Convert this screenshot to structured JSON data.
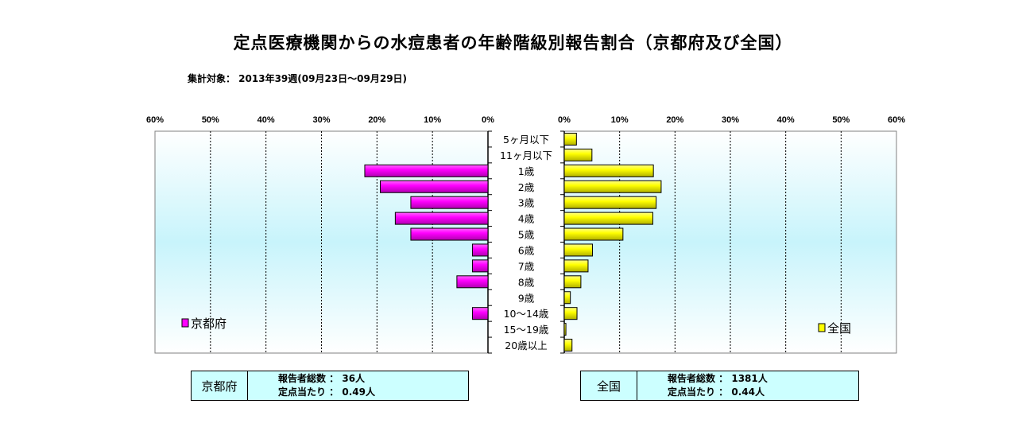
{
  "title": "定点医療機関からの水痘患者の年齢階級別報告割合（京都府及び全国）",
  "subtitle": "集計対象： 2013年39週(09月23日～09月29日)",
  "chart_data": {
    "type": "bar",
    "orientation": "horizontal-butterfly",
    "categories": [
      "5ヶ月以下",
      "11ヶ月以下",
      "1歳",
      "2歳",
      "3歳",
      "4歳",
      "5歳",
      "6歳",
      "7歳",
      "8歳",
      "9歳",
      "10～14歳",
      "15～19歳",
      "20歳以上"
    ],
    "xlim": [
      0,
      60
    ],
    "ticks": [
      "60%",
      "50%",
      "40%",
      "30%",
      "20%",
      "10%",
      "0%"
    ],
    "ticks_right": [
      "0%",
      "10%",
      "20%",
      "30%",
      "40%",
      "50%",
      "60%"
    ],
    "grid": true,
    "series": [
      {
        "name": "京都府",
        "side": "left",
        "color": "#ff00ff",
        "values": [
          0,
          0,
          22.2,
          19.4,
          13.9,
          16.7,
          13.9,
          2.8,
          2.8,
          5.6,
          0,
          2.8,
          0,
          0
        ]
      },
      {
        "name": "全国",
        "side": "right",
        "color": "#ffff00",
        "values": [
          2.2,
          5.0,
          16.1,
          17.5,
          16.6,
          16.0,
          10.6,
          5.1,
          4.3,
          3.0,
          1.1,
          2.3,
          0.3,
          1.4
        ]
      }
    ],
    "legend": [
      "京都府",
      "全国"
    ]
  },
  "info": {
    "kyoto": {
      "name": "京都府",
      "reporters": "報告者総数 ： 36人",
      "per_point": "定点当たり ： 0.49人"
    },
    "national": {
      "name": "全国",
      "reporters": "報告者総数 ： 1381人",
      "per_point": "定点当たり ： 0.44人"
    }
  },
  "colors": {
    "plot_top": "#ffffff",
    "plot_mid": "#c8f4fb",
    "kyoto_bar": "#ff00ff",
    "national_bar": "#ffff00",
    "infobox_bg": "#ccffff"
  }
}
